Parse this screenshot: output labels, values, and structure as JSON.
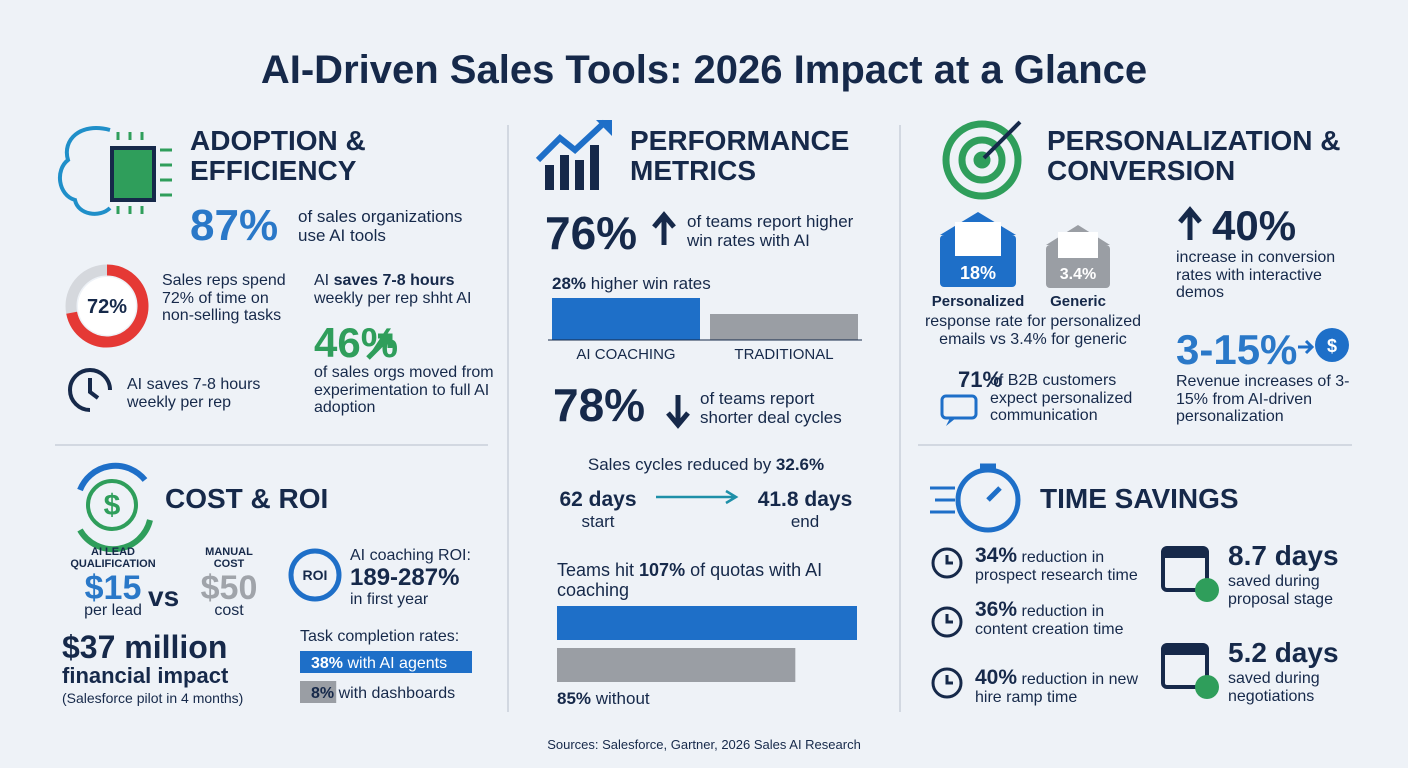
{
  "title": "AI-Driven Sales Tools: 2026 Impact at a Glance",
  "adoption": {
    "heading": "ADOPTION & EFFICIENCY",
    "stat": "87%",
    "stat_text": "of sales organizations use AI tools",
    "donut": {
      "value": 72,
      "label": "72%"
    },
    "donut_text": "Sales reps spend 72% of time on non-selling tasks",
    "clock_text": "AI saves 7-8 hours weekly per rep",
    "saves_lead": "AI ",
    "saves_bold": "saves 7-8 hours",
    "saves_rest": " weekly per rep shht AI",
    "moved_stat": "46%",
    "moved_text": "of sales orgs moved from experimentation to full AI adoption"
  },
  "cost": {
    "heading": "COST & ROI",
    "ai_label": "AI LEAD QUALIFICATION",
    "ai_price": "$15",
    "ai_unit": "per lead",
    "vs": "vs",
    "manual_label": "MANUAL COST",
    "manual_price": "$50",
    "manual_unit": "cost",
    "roi_icon": "ROI",
    "roi_label": "AI coaching ROI:",
    "roi_value": "189-287%",
    "roi_period": "in first year",
    "impact": "$37 million",
    "impact_text": "financial impact",
    "impact_note": "(Salesforce pilot in 4 months)",
    "task_title": "Task completion rates:",
    "task_bars": [
      {
        "value": 38,
        "label": "38%",
        "text": "with AI agents"
      },
      {
        "value": 8,
        "label": "8%",
        "text": "with dashboards"
      }
    ]
  },
  "performance": {
    "heading": "PERFORMANCE METRICS",
    "win_stat": "76%",
    "win_text": "of teams report higher win rates with AI",
    "higher_bold": "28%",
    "higher_text": " higher win rates",
    "bar_labels": [
      "AI COACHING",
      "TRADITIONAL"
    ],
    "cycle_stat": "78%",
    "cycle_text": "of teams report shorter deal cycles",
    "reduced_text": "Sales cycles reduced by ",
    "reduced_bold": "32.6%",
    "start_days": "62 days",
    "start_label": "start",
    "end_days": "41.8 days",
    "end_label": "end",
    "quota_lead": "Teams hit ",
    "quota_bars": [
      {
        "value": 107,
        "label": "107%"
      },
      {
        "value": 85,
        "label": "85%"
      }
    ],
    "quota_rest": " of quotas with AI coaching",
    "without_text": " without"
  },
  "personalization": {
    "heading": "PERSONALIZATION & CONVERSION",
    "personal_rate": "18%",
    "generic_rate": "3.4%",
    "personal_label": "Personalized",
    "generic_label": "Generic",
    "email_text": "response rate for personalized emails vs 3.4% for generic",
    "conv_stat": "40%",
    "conv_text": "increase in conversion rates with interactive demos",
    "b2b_stat": "71%",
    "b2b_text": "of B2B customers expect personalized communication",
    "rev_stat": "3-15%",
    "rev_text": "Revenue increases of 3-15% from AI-driven personalization"
  },
  "time": {
    "heading": "TIME SAVINGS",
    "reductions": [
      {
        "stat": "34%",
        "text": "reduction in prospect research time"
      },
      {
        "stat": "36%",
        "text": "reduction in content creation time"
      },
      {
        "stat": "40%",
        "text": "reduction in new hire ramp time"
      }
    ],
    "days": [
      {
        "stat": "8.7 days",
        "text": "saved during proposal stage"
      },
      {
        "stat": "5.2 days",
        "text": "saved during negotiations"
      }
    ]
  },
  "footer": "Sources: Salesforce, Gartner, 2026 Sales AI Research"
}
